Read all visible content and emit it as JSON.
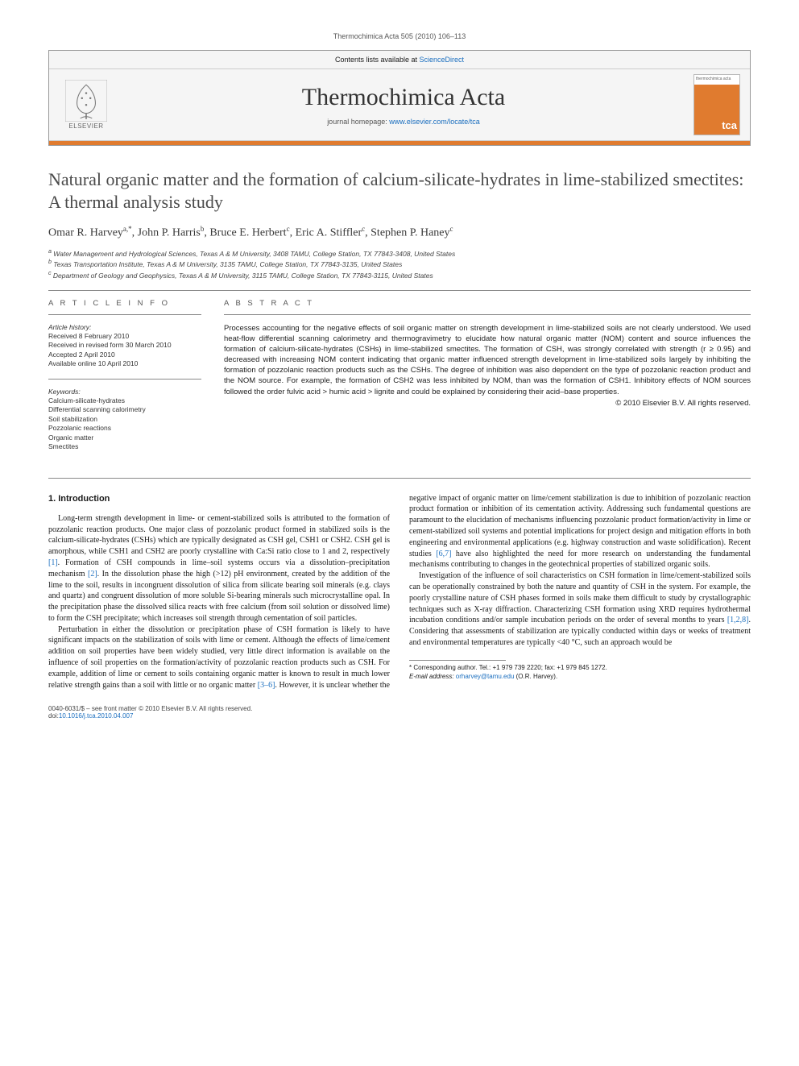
{
  "running_head": "Thermochimica Acta 505 (2010) 106–113",
  "header": {
    "contents_line_prefix": "Contents lists available at ",
    "contents_link": "ScienceDirect",
    "journal_name": "Thermochimica Acta",
    "homepage_prefix": "journal homepage: ",
    "homepage_url": "www.elsevier.com/locate/tca",
    "publisher": "ELSEVIER",
    "cover_small": "thermochimica acta",
    "cover_tca": "tca"
  },
  "title": "Natural organic matter and the formation of calcium-silicate-hydrates in lime-stabilized smectites: A thermal analysis study",
  "authors_html": "Omar R. Harvey<sup>a,*</sup>, John P. Harris<sup>b</sup>, Bruce E. Herbert<sup>c</sup>, Eric A. Stiffler<sup>c</sup>, Stephen P. Haney<sup>c</sup>",
  "affiliations": [
    "a Water Management and Hydrological Sciences, Texas A & M University, 3408 TAMU, College Station, TX 77843-3408, United States",
    "b Texas Transportation Institute, Texas A & M University, 3135 TAMU, College Station, TX 77843-3135, United States",
    "c Department of Geology and Geophysics, Texas A & M University, 3115 TAMU, College Station, TX 77843-3115, United States"
  ],
  "article_info": {
    "heading": "A R T I C L E   I N F O",
    "history_label": "Article history:",
    "history": [
      "Received 8 February 2010",
      "Received in revised form 30 March 2010",
      "Accepted 2 April 2010",
      "Available online 10 April 2010"
    ],
    "keywords_label": "Keywords:",
    "keywords": [
      "Calcium-silicate-hydrates",
      "Differential scanning calorimetry",
      "Soil stabilization",
      "Pozzolanic reactions",
      "Organic matter",
      "Smectites"
    ]
  },
  "abstract": {
    "heading": "A B S T R A C T",
    "text": "Processes accounting for the negative effects of soil organic matter on strength development in lime-stabilized soils are not clearly understood. We used heat-flow differential scanning calorimetry and thermogravimetry to elucidate how natural organic matter (NOM) content and source influences the formation of calcium-silicate-hydrates (CSHs) in lime-stabilized smectites. The formation of CSH, was strongly correlated with strength (r ≥ 0.95) and decreased with increasing NOM content indicating that organic matter influenced strength development in lime-stabilized soils largely by inhibiting the formation of pozzolanic reaction products such as the CSHs. The degree of inhibition was also dependent on the type of pozzolanic reaction product and the NOM source. For example, the formation of CSH2 was less inhibited by NOM, than was the formation of CSH1. Inhibitory effects of NOM sources followed the order fulvic acid > humic acid > lignite and could be explained by considering their acid–base properties.",
    "copyright": "© 2010 Elsevier B.V. All rights reserved."
  },
  "section1": {
    "heading": "1.  Introduction",
    "p1": "Long-term strength development in lime- or cement-stabilized soils is attributed to the formation of pozzolanic reaction products. One major class of pozzolanic product formed in stabilized soils is the calcium-silicate-hydrates (CSHs) which are typically designated as CSH gel, CSH1 or CSH2. CSH gel is amorphous, while CSH1 and CSH2 are poorly crystalline with Ca:Si ratio close to 1 and 2, respectively ",
    "p1b": ". Formation of CSH compounds in lime–soil systems occurs via a dissolution–precipitation mechanism ",
    "p1c": ". In the dissolution phase the high (>12) pH environment, created by the addition of the lime to the soil, results in incongruent dissolution of silica from silicate bearing soil minerals (e.g. clays and quartz) and congruent dissolution of more soluble Si-bearing minerals such microcrystalline opal. In the precipitation phase the dissolved silica reacts with free calcium (from soil solution or dissolved lime) to form the CSH precipitate; which increases soil strength through cementation of soil particles.",
    "p2": "Perturbation in either the dissolution or precipitation phase of CSH formation is likely to have significant impacts on the stabilization of soils with lime or cement. Although the effects of lime/cement addition on soil properties have been widely studied, very little direct information is available on the influence of soil properties on the formation/activity of pozzolanic reaction products such as CSH. For example, addition of lime or cement to soils containing organic matter is known to result in much lower relative strength gains than a soil with little or no organic matter ",
    "p2b": ". However, it is unclear whether the negative impact of organic matter on lime/cement stabilization is due to inhibition of pozzolanic reaction product formation or inhibition of its cementation activity. Addressing such fundamental questions are paramount to the elucidation of mechanisms influencing pozzolanic product formation/activity in lime or cement-stabilized soil systems and potential implications for project design and mitigation efforts in both engineering and environmental applications (e.g. highway construction and waste solidification). Recent studies ",
    "p2c": " have also highlighted the need for more research on understanding the fundamental mechanisms contributing to changes in the geotechnical properties of stabilized organic soils.",
    "p3": "Investigation of the influence of soil characteristics on CSH formation in lime/cement-stabilized soils can be operationally constrained by both the nature and quantity of CSH in the system. For example, the poorly crystalline nature of CSH phases formed in soils make them difficult to study by crystallographic techniques such as X-ray diffraction. Characterizing CSH formation using XRD requires hydrothermal incubation conditions and/or sample incubation periods on the order of several months to years ",
    "p3b": ". Considering that assessments of stabilization are typically conducted within days or weeks of treatment and environmental temperatures are typically <40 °C, such an approach would be",
    "ref1": "[1]",
    "ref2": "[2]",
    "ref36": "[3–6]",
    "ref67": "[6,7]",
    "ref128": "[1,2,8]"
  },
  "footnotes": {
    "corr": "* Corresponding author. Tel.: +1 979 739 2220; fax: +1 979 845 1272.",
    "email_label": "E-mail address: ",
    "email": "orharvey@tamu.edu",
    "email_suffix": " (O.R. Harvey)."
  },
  "footer": {
    "left1": "0040-6031/$ – see front matter © 2010 Elsevier B.V. All rights reserved.",
    "left2_prefix": "doi:",
    "doi": "10.1016/j.tca.2010.04.007"
  },
  "colors": {
    "accent": "#e07b2f",
    "link": "#1a6ebf"
  }
}
